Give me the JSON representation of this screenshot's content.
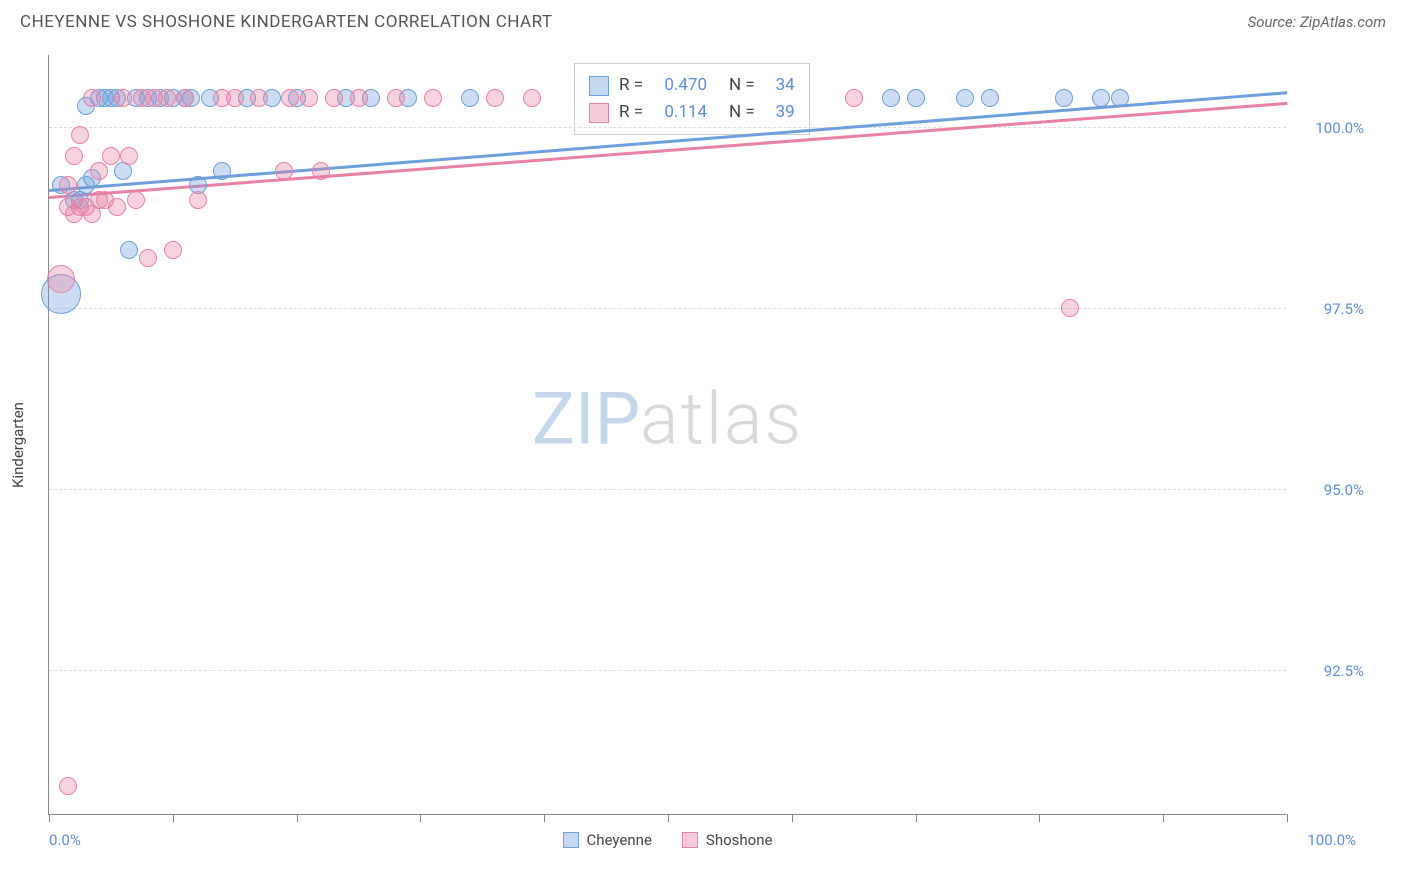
{
  "header": {
    "title": "CHEYENNE VS SHOSHONE KINDERGARTEN CORRELATION CHART",
    "source_prefix": "Source: ",
    "source_name": "ZipAtlas.com"
  },
  "watermark": {
    "zip": "ZIP",
    "atlas": "atlas"
  },
  "chart": {
    "type": "scatter",
    "background_color": "#ffffff",
    "grid_color": "#dddddd",
    "axis_color": "#888888",
    "label_color": "#5b8dd6",
    "yaxis_title": "Kindergarten",
    "xlim": [
      0,
      100
    ],
    "ylim": [
      90.5,
      101.0
    ],
    "x_labels": {
      "min": "0.0%",
      "max": "100.0%"
    },
    "x_ticks": [
      0,
      10,
      20,
      30,
      40,
      50,
      60,
      70,
      80,
      90,
      100
    ],
    "y_gridlines": [
      {
        "value": 92.5,
        "label": "92.5%"
      },
      {
        "value": 95.0,
        "label": "95.0%"
      },
      {
        "value": 97.5,
        "label": "97.5%"
      },
      {
        "value": 100.0,
        "label": "100.0%"
      }
    ],
    "series": [
      {
        "name": "Cheyenne",
        "color": "#6c9fdc",
        "fill": "rgba(108,159,220,0.35)",
        "marker_radius": 9,
        "regression": {
          "y_at_x0": 99.15,
          "y_at_x100": 100.5,
          "R": "0.470",
          "N": "34"
        },
        "points": [
          {
            "x": 1,
            "y": 97.7,
            "r": 20
          },
          {
            "x": 1,
            "y": 99.2
          },
          {
            "x": 2,
            "y": 99.0
          },
          {
            "x": 2.5,
            "y": 99.0
          },
          {
            "x": 3,
            "y": 99.2
          },
          {
            "x": 3,
            "y": 100.3
          },
          {
            "x": 3.5,
            "y": 99.3
          },
          {
            "x": 4,
            "y": 100.4
          },
          {
            "x": 4.5,
            "y": 100.4
          },
          {
            "x": 5,
            "y": 100.4
          },
          {
            "x": 5.5,
            "y": 100.4
          },
          {
            "x": 6,
            "y": 99.4
          },
          {
            "x": 6.5,
            "y": 98.3
          },
          {
            "x": 7,
            "y": 100.4
          },
          {
            "x": 8,
            "y": 100.4
          },
          {
            "x": 9,
            "y": 100.4
          },
          {
            "x": 10,
            "y": 100.4
          },
          {
            "x": 11,
            "y": 100.4
          },
          {
            "x": 11.5,
            "y": 100.4
          },
          {
            "x": 12,
            "y": 99.2
          },
          {
            "x": 13,
            "y": 100.4
          },
          {
            "x": 14,
            "y": 99.4
          },
          {
            "x": 16,
            "y": 100.4
          },
          {
            "x": 18,
            "y": 100.4
          },
          {
            "x": 20,
            "y": 100.4
          },
          {
            "x": 24,
            "y": 100.4
          },
          {
            "x": 26,
            "y": 100.4
          },
          {
            "x": 29,
            "y": 100.4
          },
          {
            "x": 34,
            "y": 100.4
          },
          {
            "x": 68,
            "y": 100.4
          },
          {
            "x": 70,
            "y": 100.4
          },
          {
            "x": 74,
            "y": 100.4
          },
          {
            "x": 76,
            "y": 100.4
          },
          {
            "x": 82,
            "y": 100.4
          },
          {
            "x": 85,
            "y": 100.4
          },
          {
            "x": 86.5,
            "y": 100.4
          }
        ]
      },
      {
        "name": "Shoshone",
        "color": "#e980a5",
        "fill": "rgba(233,128,165,0.35)",
        "marker_radius": 9,
        "regression": {
          "y_at_x0": 99.05,
          "y_at_x100": 100.35,
          "R": "0.114",
          "N": "39"
        },
        "points": [
          {
            "x": 1,
            "y": 97.9,
            "r": 14
          },
          {
            "x": 1.5,
            "y": 90.9
          },
          {
            "x": 1.5,
            "y": 98.9
          },
          {
            "x": 1.5,
            "y": 99.2
          },
          {
            "x": 2,
            "y": 98.8
          },
          {
            "x": 2,
            "y": 99.6
          },
          {
            "x": 2.5,
            "y": 98.9
          },
          {
            "x": 2.5,
            "y": 99.9
          },
          {
            "x": 3,
            "y": 98.9
          },
          {
            "x": 3.5,
            "y": 98.8
          },
          {
            "x": 3.5,
            "y": 100.4
          },
          {
            "x": 4,
            "y": 99.0
          },
          {
            "x": 4,
            "y": 99.4
          },
          {
            "x": 4.5,
            "y": 99.0
          },
          {
            "x": 5,
            "y": 99.6
          },
          {
            "x": 5.5,
            "y": 98.9
          },
          {
            "x": 6,
            "y": 100.4
          },
          {
            "x": 6.5,
            "y": 99.6
          },
          {
            "x": 7,
            "y": 99.0
          },
          {
            "x": 7.5,
            "y": 100.4
          },
          {
            "x": 8,
            "y": 98.2
          },
          {
            "x": 8.5,
            "y": 100.4
          },
          {
            "x": 9.5,
            "y": 100.4
          },
          {
            "x": 10,
            "y": 98.3
          },
          {
            "x": 11,
            "y": 100.4
          },
          {
            "x": 12,
            "y": 99.0
          },
          {
            "x": 14,
            "y": 100.4
          },
          {
            "x": 15,
            "y": 100.4
          },
          {
            "x": 17,
            "y": 100.4
          },
          {
            "x": 19,
            "y": 99.4
          },
          {
            "x": 19.5,
            "y": 100.4
          },
          {
            "x": 21,
            "y": 100.4
          },
          {
            "x": 22,
            "y": 99.4
          },
          {
            "x": 23,
            "y": 100.4
          },
          {
            "x": 25,
            "y": 100.4
          },
          {
            "x": 28,
            "y": 100.4
          },
          {
            "x": 31,
            "y": 100.4
          },
          {
            "x": 36,
            "y": 100.4
          },
          {
            "x": 39,
            "y": 100.4
          },
          {
            "x": 65,
            "y": 100.4
          },
          {
            "x": 82.5,
            "y": 97.5
          }
        ]
      }
    ],
    "legend_bottom": [
      {
        "label": "Cheyenne",
        "color": "#6c9fdc",
        "fill": "rgba(108,159,220,0.4)"
      },
      {
        "label": "Shoshone",
        "color": "#e980a5",
        "fill": "rgba(233,128,165,0.4)"
      }
    ]
  }
}
